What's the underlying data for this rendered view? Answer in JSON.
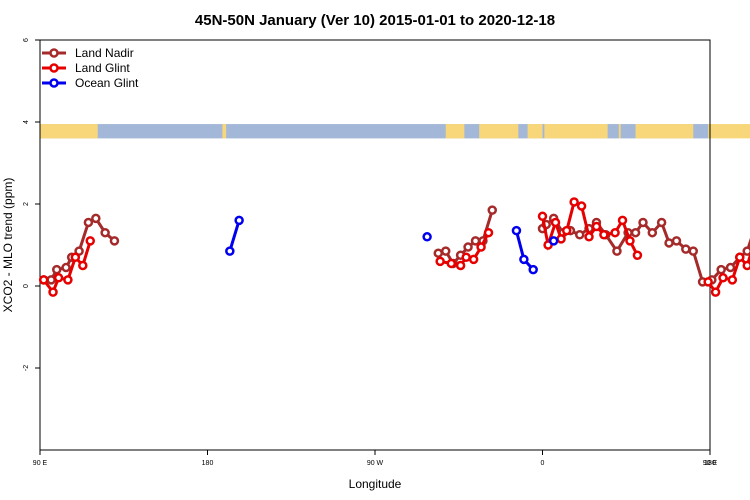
{
  "chart_data": {
    "type": "line",
    "title": "45N-50N January (Ver 10)   2015-01-01 to 2020-12-18",
    "xlabel": "Longitude",
    "ylabel": "XCO2 - MLO trend (ppm)",
    "xlim": [
      90,
      450
    ],
    "ylim": [
      -4,
      6
    ],
    "x_ticks": [
      {
        "value": 90,
        "label": "90 E"
      },
      {
        "value": 180,
        "label": "180"
      },
      {
        "value": 270,
        "label": "90 W"
      },
      {
        "value": 360,
        "label": "0"
      },
      {
        "value": 450,
        "label": "90 E"
      },
      {
        "value": 540,
        "label": "180"
      }
    ],
    "y_ticks": [
      {
        "value": -2,
        "label": "-2"
      },
      {
        "value": 0,
        "label": "0"
      },
      {
        "value": 2,
        "label": "2"
      },
      {
        "value": 4,
        "label": "4"
      },
      {
        "value": 6,
        "label": "6"
      }
    ],
    "legend_position": "top-left",
    "grid": false,
    "map_strip": {
      "y_range": [
        3.6,
        3.95
      ],
      "land_color": "#f7d77a",
      "ocean_color": "#a3b8d9"
    },
    "series": [
      {
        "name": "Land Nadir",
        "color": "#a52a2a",
        "segments": [
          [
            [
              92,
              0.15
            ],
            [
              96,
              0.15
            ],
            [
              99,
              0.4
            ],
            [
              104,
              0.45
            ],
            [
              107,
              0.7
            ],
            [
              111,
              0.85
            ],
            [
              116,
              1.55
            ],
            [
              120,
              1.65
            ],
            [
              125,
              1.3
            ],
            [
              130,
              1.1
            ]
          ],
          [
            [
              304,
              0.8
            ],
            [
              308,
              0.85
            ],
            [
              312,
              0.55
            ],
            [
              316,
              0.75
            ],
            [
              320,
              0.95
            ],
            [
              324,
              1.1
            ],
            [
              328,
              1.1
            ],
            [
              333,
              1.85
            ]
          ],
          [
            [
              360,
              1.4
            ],
            [
              362,
              1.5
            ],
            [
              366,
              1.65
            ],
            [
              371,
              1.3
            ],
            [
              375,
              1.35
            ],
            [
              380,
              1.25
            ],
            [
              385,
              1.4
            ],
            [
              389,
              1.55
            ],
            [
              394,
              1.25
            ],
            [
              400,
              0.85
            ],
            [
              406,
              1.3
            ],
            [
              410,
              1.3
            ],
            [
              414,
              1.55
            ],
            [
              419,
              1.3
            ],
            [
              424,
              1.55
            ],
            [
              428,
              1.05
            ],
            [
              432,
              1.1
            ],
            [
              437,
              0.9
            ],
            [
              441,
              0.85
            ],
            [
              446,
              0.1
            ],
            [
              451,
              0.15
            ],
            [
              456,
              0.4
            ],
            [
              461,
              0.45
            ],
            [
              466,
              0.7
            ],
            [
              470,
              0.85
            ],
            [
              475,
              1.55
            ],
            [
              479,
              1.65
            ],
            [
              484,
              1.3
            ],
            [
              489,
              1.1
            ]
          ]
        ]
      },
      {
        "name": "Land Glint",
        "color": "#e60000",
        "segments": [
          [
            [
              92,
              0.15
            ],
            [
              97,
              -0.15
            ],
            [
              100,
              0.2
            ],
            [
              105,
              0.15
            ],
            [
              109,
              0.7
            ],
            [
              113,
              0.5
            ],
            [
              117,
              1.1
            ]
          ],
          [
            [
              305,
              0.6
            ],
            [
              311,
              0.55
            ],
            [
              316,
              0.5
            ],
            [
              319,
              0.7
            ],
            [
              323,
              0.65
            ],
            [
              327,
              0.95
            ],
            [
              331,
              1.3
            ]
          ],
          [
            [
              360,
              1.7
            ],
            [
              363,
              1.0
            ],
            [
              367,
              1.55
            ],
            [
              370,
              1.15
            ],
            [
              373,
              1.35
            ],
            [
              377,
              2.05
            ],
            [
              381,
              1.95
            ],
            [
              385,
              1.2
            ],
            [
              389,
              1.45
            ],
            [
              393,
              1.25
            ],
            [
              399,
              1.3
            ],
            [
              403,
              1.6
            ],
            [
              407,
              1.1
            ],
            [
              411,
              0.75
            ]
          ],
          [
            [
              449,
              0.1
            ],
            [
              453,
              -0.15
            ],
            [
              457,
              0.2
            ],
            [
              462,
              0.15
            ],
            [
              466,
              0.7
            ],
            [
              470,
              0.5
            ],
            [
              474,
              1.1
            ]
          ]
        ]
      },
      {
        "name": "Ocean Glint",
        "color": "#0000ee",
        "segments": [
          [
            [
              192,
              0.85
            ],
            [
              197,
              1.6
            ]
          ],
          [
            [
              298,
              1.2
            ]
          ],
          [
            [
              346,
              1.35
            ],
            [
              350,
              0.65
            ],
            [
              355,
              0.4
            ]
          ],
          [
            [
              366,
              1.1
            ]
          ]
        ]
      }
    ]
  }
}
